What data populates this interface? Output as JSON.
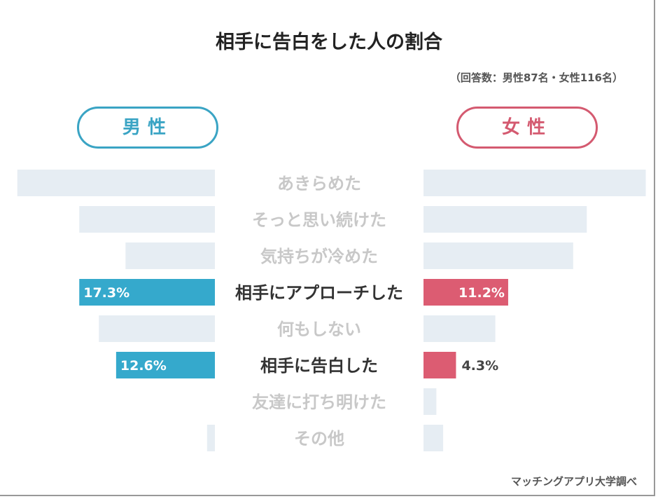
{
  "title": "相手に告白をした人の割合",
  "note": "（回答数：男性87名・女性116名）",
  "source": "マッチングアプリ大学調べ",
  "colors": {
    "male": "#35a9cc",
    "female": "#dc5c72",
    "muted": "#e6edf3",
    "muted_text": "#c8c8c8",
    "highlight_text": "#333333"
  },
  "chart_data": {
    "type": "bar",
    "orientation": "butterfly-horizontal",
    "title": "相手に告白をした人の割合",
    "categories": [
      "あきらめた",
      "そっと思い続けた",
      "気持ちが冷めた",
      "相手にアプローチした",
      "何もしない",
      "相手に告白した",
      "友達に打ち明けた",
      "その他"
    ],
    "highlighted": [
      false,
      false,
      false,
      true,
      false,
      true,
      false,
      false
    ],
    "series": [
      {
        "name": "男性",
        "values": [
          25.2,
          17.3,
          11.4,
          17.3,
          14.8,
          12.6,
          0,
          1.0
        ],
        "labels": [
          null,
          null,
          null,
          "17.3%",
          null,
          "12.6%",
          null,
          null
        ]
      },
      {
        "name": "女性",
        "values": [
          29.4,
          21.6,
          19.8,
          11.2,
          9.5,
          4.3,
          1.7,
          2.6
        ],
        "labels": [
          null,
          null,
          null,
          "11.2%",
          null,
          "4.3%",
          null,
          null
        ]
      }
    ],
    "unit": "%"
  }
}
